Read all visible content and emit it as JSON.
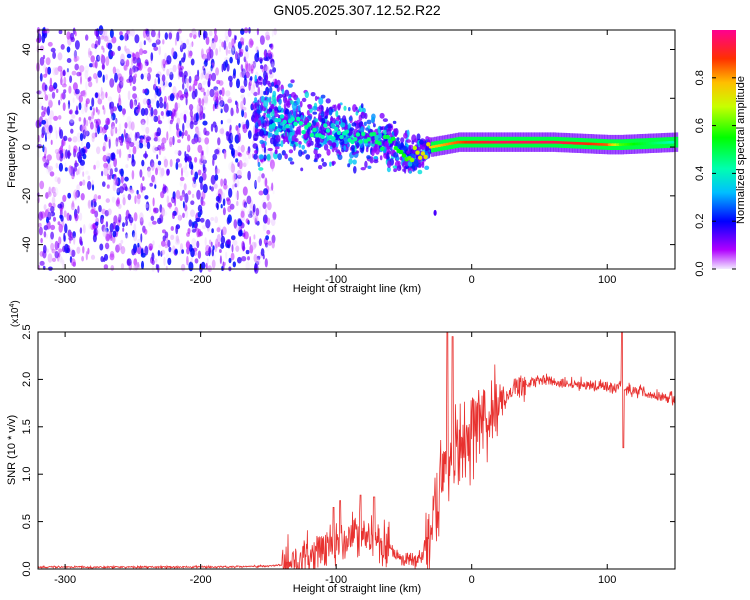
{
  "title": "GN05.2025.307.12.52.R22",
  "chart_data": [
    {
      "type": "heatmap",
      "name": "spectrogram",
      "xlabel": "Height of straight line (km)",
      "ylabel": "Frequency (Hz)",
      "xlim": [
        -320,
        150
      ],
      "ylim": [
        -50,
        48
      ],
      "xticks": [
        -300,
        -200,
        -100,
        0,
        100
      ],
      "yticks": [
        -40,
        -20,
        0,
        20,
        40
      ],
      "ridge": {
        "description": "dominant spectral ridge (frequency vs height)",
        "x": [
          -150,
          -120,
          -100,
          -80,
          -60,
          -50,
          -40,
          -30,
          -20,
          -10,
          0,
          20,
          60,
          100,
          110,
          150
        ],
        "freq_hz": [
          11,
          8,
          6,
          4,
          1,
          -2,
          -3,
          0,
          1,
          2,
          2,
          2,
          2,
          1,
          1,
          2
        ],
        "amplitude": [
          0.35,
          0.45,
          0.4,
          0.45,
          0.5,
          0.55,
          0.7,
          0.75,
          0.8,
          0.85,
          0.9,
          0.95,
          0.95,
          0.85,
          0.6,
          0.4
        ]
      },
      "noise_region_x": [
        -320,
        -145
      ],
      "colorbar": {
        "label": "Normalized spectral amplitude",
        "range": [
          0.0,
          1.0
        ],
        "ticks": [
          "0.0",
          "0.2",
          "0.4",
          "0.6",
          "0.8"
        ]
      }
    },
    {
      "type": "line",
      "name": "snr",
      "xlabel": "Height of straight line (km)",
      "ylabel": "SNR (10 * v/v)",
      "multiplier_label": "(x10",
      "multiplier_exp": "4",
      "xlim": [
        -320,
        150
      ],
      "ylim": [
        0,
        2.5
      ],
      "xticks": [
        -300,
        -200,
        -100,
        0,
        100
      ],
      "yticks": [
        "0.0",
        "0.5",
        "1.0",
        "1.5",
        "2.0",
        "2.5"
      ],
      "color": "#e8312f",
      "series": [
        {
          "name": "SNR",
          "x": [
            -320,
            -200,
            -150,
            -130,
            -120,
            -110,
            -100,
            -90,
            -80,
            -70,
            -60,
            -50,
            -40,
            -30,
            -25,
            -20,
            -15,
            -12,
            -10,
            -5,
            0,
            10,
            20,
            30,
            40,
            50,
            60,
            70,
            80,
            90,
            100,
            108,
            110,
            115,
            120,
            130,
            140,
            150
          ],
          "y": [
            0.02,
            0.02,
            0.03,
            0.06,
            0.12,
            0.25,
            0.28,
            0.3,
            0.32,
            0.3,
            0.2,
            0.12,
            0.08,
            0.35,
            0.8,
            1.2,
            1.3,
            1.2,
            1.15,
            1.3,
            1.45,
            1.6,
            1.75,
            1.9,
            1.95,
            2.0,
            1.97,
            1.95,
            1.95,
            1.94,
            1.93,
            1.9,
            1.95,
            1.9,
            1.88,
            1.85,
            1.82,
            1.8
          ],
          "spikes": [
            {
              "x": -102,
              "y": 0.65
            },
            {
              "x": -97,
              "y": 0.72
            },
            {
              "x": -82,
              "y": 0.78
            },
            {
              "x": -72,
              "y": 0.76
            },
            {
              "x": -18,
              "y": 2.5
            },
            {
              "x": -14,
              "y": 2.45
            },
            {
              "x": 111,
              "y": 2.5
            },
            {
              "x": 112,
              "y": 1.28
            }
          ]
        }
      ]
    }
  ]
}
